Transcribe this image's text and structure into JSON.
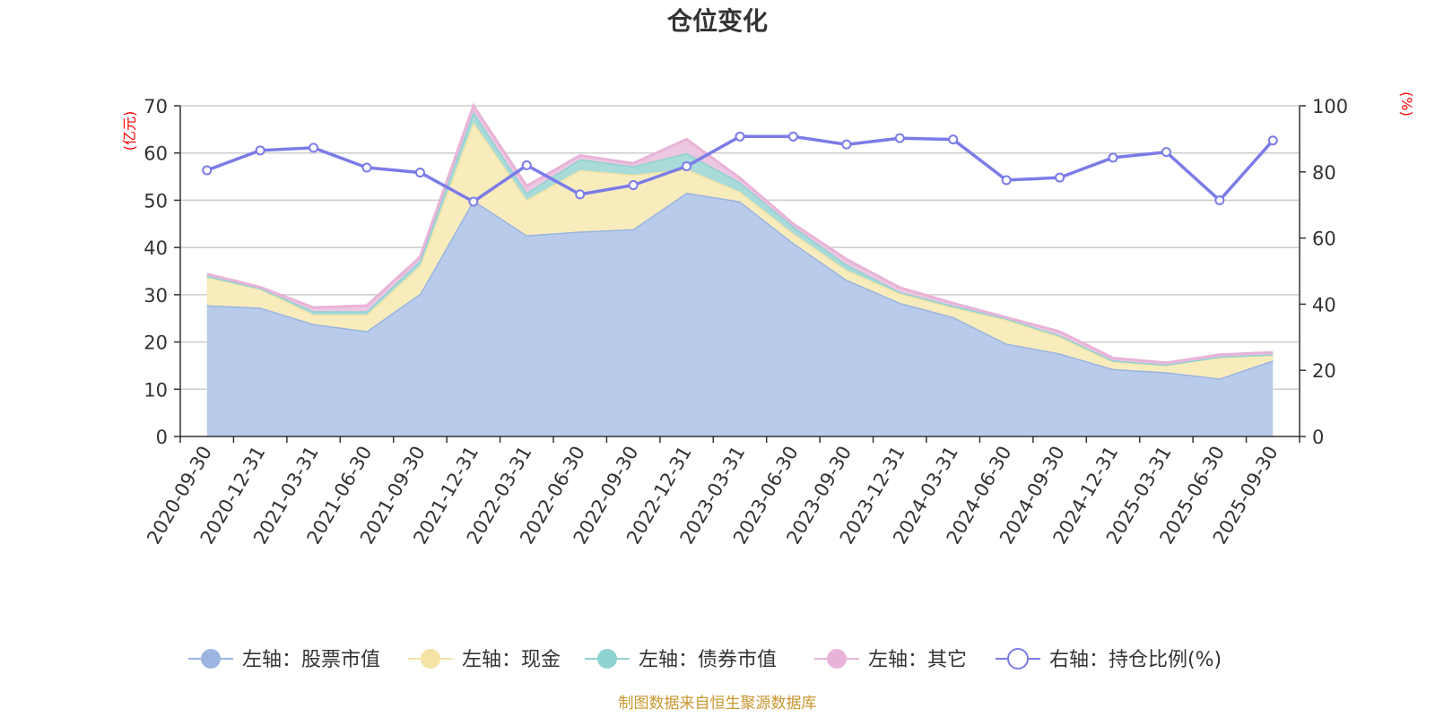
{
  "chart_data": {
    "type": "area",
    "title": "仓位变化",
    "source": "制图数据来自恒生聚源数据库",
    "left_axis": {
      "unit": "(亿元)",
      "ylim": [
        0,
        70
      ],
      "ticks": [
        0,
        10,
        20,
        30,
        40,
        50,
        60,
        70
      ]
    },
    "right_axis": {
      "unit": "(%)",
      "ylim": [
        0,
        100
      ],
      "ticks": [
        0,
        20,
        40,
        60,
        80,
        100
      ]
    },
    "categories": [
      "2020-09-30",
      "2020-12-31",
      "2021-03-31",
      "2021-06-30",
      "2021-09-30",
      "2021-12-31",
      "2022-03-31",
      "2022-06-30",
      "2022-09-30",
      "2022-12-31",
      "2023-03-31",
      "2023-06-30",
      "2023-09-30",
      "2023-12-31",
      "2024-03-31",
      "2024-06-30",
      "2024-09-30",
      "2024-12-31",
      "2025-03-31",
      "2025-06-30",
      "2025-09-30"
    ],
    "series": [
      {
        "name": "左轴：股票市值",
        "axis": "left",
        "kind": "area",
        "color": "#9bb5e0",
        "fill": "#b8cbea",
        "values": [
          27.8,
          27.3,
          23.8,
          22.3,
          30.2,
          50.0,
          42.6,
          43.4,
          43.9,
          51.6,
          49.8,
          41.0,
          33.2,
          28.3,
          25.3,
          19.7,
          17.6,
          14.3,
          13.6,
          12.3,
          16.1
        ]
      },
      {
        "name": "左轴：现金",
        "axis": "left",
        "kind": "area",
        "color": "#f3e3a4",
        "fill": "#f8ecbd",
        "values": [
          6.0,
          4.0,
          2.0,
          3.5,
          6.0,
          16.5,
          7.5,
          13.0,
          11.5,
          5.0,
          2.0,
          2.0,
          2.0,
          2.0,
          2.0,
          5.0,
          3.5,
          1.5,
          1.5,
          4.5,
          1.2
        ]
      },
      {
        "name": "左轴：债券市值",
        "axis": "left",
        "kind": "area",
        "color": "#8fd2d2",
        "fill": "#a9dbd9",
        "values": [
          0.2,
          0.1,
          0.7,
          0.7,
          1.0,
          2.2,
          1.5,
          2.3,
          1.8,
          3.4,
          2.0,
          1.5,
          1.2,
          0.3,
          0.4,
          0.3,
          0.3,
          0.3,
          0.1,
          0.1,
          0.1
        ]
      },
      {
        "name": "左轴：其它",
        "axis": "left",
        "kind": "area",
        "color": "#e8b3d8",
        "fill": "#ecc7e1",
        "values": [
          0.4,
          0.2,
          0.8,
          1.2,
          0.8,
          1.3,
          1.4,
          0.8,
          0.6,
          2.9,
          0.9,
          0.5,
          1.1,
          0.9,
          0.5,
          0.2,
          0.8,
          0.5,
          0.4,
          0.4,
          0.4
        ]
      },
      {
        "name": "右轴：持仓比例(%)",
        "axis": "right",
        "kind": "line",
        "color": "#7b7be8",
        "values": [
          80.5,
          86.5,
          87.3,
          81.3,
          79.8,
          71.0,
          82.0,
          73.2,
          76.0,
          81.7,
          90.7,
          90.7,
          88.3,
          90.2,
          89.8,
          77.5,
          78.3,
          84.3,
          86.0,
          71.4,
          89.5
        ]
      }
    ],
    "legend": {
      "position": "bottom"
    },
    "grid": true
  }
}
